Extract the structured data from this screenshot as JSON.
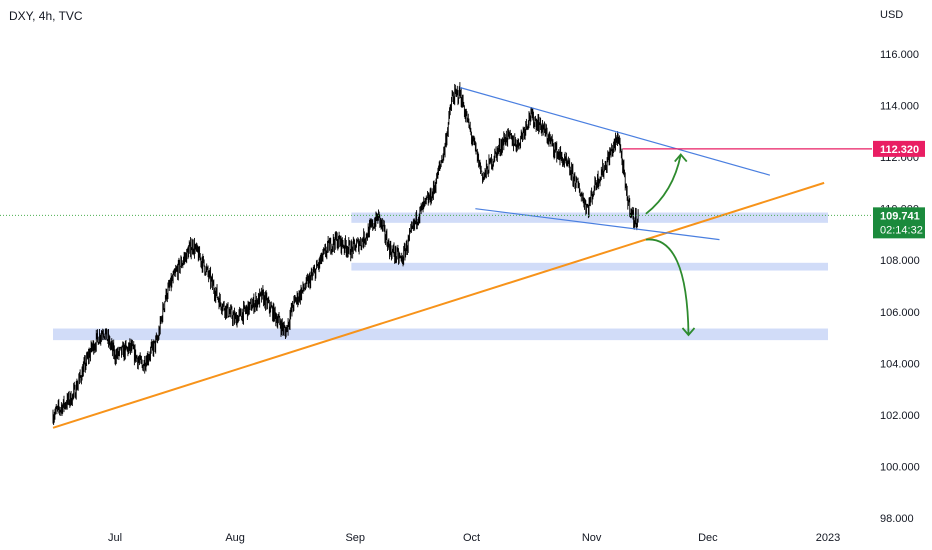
{
  "header": {
    "symbol": "DXY, 4h, TVC"
  },
  "axis": {
    "currency": "USD"
  },
  "colors": {
    "candle": "#000000",
    "zone": "#d1dcf8",
    "trend_orange": "#f7931a",
    "channel_blue": "#4a7fe0",
    "target_red": "#e91e63",
    "arrow_green": "#2e8b2e",
    "price_tag": "#1b8a3c",
    "last_price_line": "#4caf50"
  },
  "chart_data": {
    "type": "candlestick",
    "symbol": "DXY",
    "timeframe": "4h",
    "source": "TVC",
    "y_axis": {
      "unit": "USD",
      "range": [
        97.8,
        117.8
      ],
      "ticks": [
        "116.000",
        "114.000",
        "112.000",
        "110.000",
        "108.000",
        "106.000",
        "104.000",
        "102.000",
        "100.000",
        "98.000"
      ]
    },
    "x_axis": {
      "ticks": [
        "Jul",
        "Aug",
        "Sep",
        "Oct",
        "Nov",
        "Dec",
        "2023"
      ]
    },
    "price_path": [
      [
        "2022-06-15",
        102.0
      ],
      [
        "2022-06-20",
        102.7
      ],
      [
        "2022-06-25",
        104.6
      ],
      [
        "2022-06-28",
        105.3
      ],
      [
        "2022-07-01",
        104.3
      ],
      [
        "2022-07-05",
        104.6
      ],
      [
        "2022-07-08",
        103.9
      ],
      [
        "2022-07-12",
        104.9
      ],
      [
        "2022-07-14",
        106.6
      ],
      [
        "2022-07-17",
        107.6
      ],
      [
        "2022-07-21",
        108.6
      ],
      [
        "2022-07-24",
        107.8
      ],
      [
        "2022-07-28",
        106.4
      ],
      [
        "2022-08-01",
        105.7
      ],
      [
        "2022-08-05",
        106.2
      ],
      [
        "2022-08-08",
        106.6
      ],
      [
        "2022-08-12",
        105.7
      ],
      [
        "2022-08-14",
        105.2
      ],
      [
        "2022-08-16",
        106.3
      ],
      [
        "2022-08-21",
        107.4
      ],
      [
        "2022-08-25",
        108.5
      ],
      [
        "2022-08-27",
        108.8
      ],
      [
        "2022-08-31",
        108.4
      ],
      [
        "2022-09-03",
        108.8
      ],
      [
        "2022-09-07",
        109.7
      ],
      [
        "2022-09-10",
        108.4
      ],
      [
        "2022-09-13",
        108.0
      ],
      [
        "2022-09-17",
        109.7
      ],
      [
        "2022-09-21",
        110.6
      ],
      [
        "2022-09-24",
        112.3
      ],
      [
        "2022-09-26",
        114.3
      ],
      [
        "2022-09-28",
        114.5
      ],
      [
        "2022-10-01",
        112.8
      ],
      [
        "2022-10-04",
        111.2
      ],
      [
        "2022-10-06",
        111.8
      ],
      [
        "2022-10-10",
        112.8
      ],
      [
        "2022-10-13",
        112.5
      ],
      [
        "2022-10-16",
        113.6
      ],
      [
        "2022-10-19",
        113.2
      ],
      [
        "2022-10-23",
        112.2
      ],
      [
        "2022-10-26",
        111.6
      ],
      [
        "2022-10-28",
        111.0
      ],
      [
        "2022-10-31",
        110.0
      ],
      [
        "2022-11-02",
        111.0
      ],
      [
        "2022-11-04",
        111.5
      ],
      [
        "2022-11-06",
        112.2
      ],
      [
        "2022-11-08",
        112.8
      ],
      [
        "2022-11-10",
        110.5
      ],
      [
        "2022-11-12",
        109.5
      ],
      [
        "2022-11-13",
        109.741
      ]
    ],
    "last_price": "109.741",
    "countdown": "02:14:32",
    "target_level": "112.320",
    "horizontal_zones": [
      {
        "from": "2022-08-31",
        "to": "2023-01-01",
        "low": 109.45,
        "high": 109.85
      },
      {
        "from": "2022-08-31",
        "to": "2023-01-01",
        "low": 107.6,
        "high": 107.9
      },
      {
        "from": "2022-06-15",
        "to": "2023-01-01",
        "low": 104.9,
        "high": 105.35
      }
    ],
    "trendlines": [
      {
        "name": "support",
        "color": "orange",
        "from": [
          "2022-06-15",
          101.5
        ],
        "to": [
          "2022-12-31",
          111.0
        ]
      },
      {
        "name": "wedge-upper",
        "color": "blue",
        "from": [
          "2022-09-28",
          114.7
        ],
        "to": [
          "2022-12-17",
          111.3
        ]
      },
      {
        "name": "wedge-lower",
        "color": "blue",
        "from": [
          "2022-10-02",
          110.0
        ],
        "to": [
          "2022-12-04",
          108.8
        ]
      }
    ],
    "projections": [
      {
        "direction": "up",
        "from": [
          "2022-11-15",
          109.8
        ],
        "to": [
          "2022-11-24",
          112.1
        ]
      },
      {
        "direction": "down",
        "from": [
          "2022-11-15",
          108.8
        ],
        "to": [
          "2022-11-26",
          105.1
        ]
      }
    ],
    "grid": false,
    "legend": "none"
  }
}
